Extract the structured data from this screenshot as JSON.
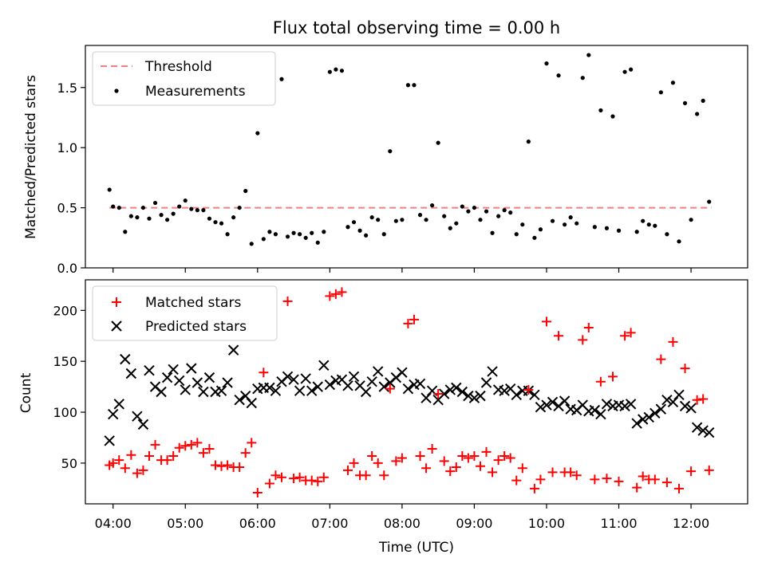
{
  "chart_data": [
    {
      "type": "scatter",
      "title": "Flux total observing time = 0.00 h",
      "xlabel": "",
      "ylabel": "Matched/Predicted stars",
      "ylim": [
        0.0,
        1.85
      ],
      "xlim": [
        "03:37",
        "12:47"
      ],
      "yticks": [
        0.0,
        0.5,
        1.0,
        1.5
      ],
      "ytick_labels": [
        "0.0",
        "0.5",
        "1.0",
        "1.5"
      ],
      "legend_position": "upper-left",
      "threshold": {
        "name": "Threshold",
        "value": 0.5,
        "x_range": [
          "03:57",
          "12:17"
        ],
        "color": "#f08080"
      },
      "series": [
        {
          "name": "Measurements",
          "color": "#000000",
          "marker": "dot",
          "x": [
            "03:57",
            "04:00",
            "04:05",
            "04:10",
            "04:15",
            "04:20",
            "04:25",
            "04:30",
            "04:35",
            "04:40",
            "04:45",
            "04:50",
            "04:55",
            "05:00",
            "05:05",
            "05:10",
            "05:15",
            "05:20",
            "05:25",
            "05:30",
            "05:35",
            "05:40",
            "05:45",
            "05:50",
            "05:55",
            "06:00",
            "06:05",
            "06:10",
            "06:15",
            "06:20",
            "06:25",
            "06:30",
            "06:35",
            "06:40",
            "06:45",
            "06:50",
            "06:55",
            "07:00",
            "07:05",
            "07:10",
            "07:15",
            "07:20",
            "07:25",
            "07:30",
            "07:35",
            "07:40",
            "07:45",
            "07:50",
            "07:55",
            "08:00",
            "08:05",
            "08:10",
            "08:15",
            "08:20",
            "08:25",
            "08:30",
            "08:35",
            "08:40",
            "08:45",
            "08:50",
            "08:55",
            "09:00",
            "09:05",
            "09:10",
            "09:15",
            "09:20",
            "09:25",
            "09:30",
            "09:35",
            "09:40",
            "09:45",
            "09:50",
            "09:55",
            "10:00",
            "10:05",
            "10:10",
            "10:15",
            "10:20",
            "10:25",
            "10:30",
            "10:35",
            "10:40",
            "10:45",
            "10:50",
            "10:55",
            "11:00",
            "11:05",
            "11:10",
            "11:15",
            "11:20",
            "11:25",
            "11:30",
            "11:35",
            "11:40",
            "11:45",
            "11:50",
            "11:55",
            "12:00",
            "12:05",
            "12:10",
            "12:15"
          ],
          "y": [
            0.65,
            0.51,
            0.5,
            0.3,
            0.43,
            0.42,
            0.5,
            0.41,
            0.54,
            0.44,
            0.4,
            0.45,
            0.51,
            0.56,
            0.49,
            0.48,
            0.48,
            0.41,
            0.38,
            0.37,
            0.28,
            0.42,
            0.5,
            0.64,
            0.2,
            1.12,
            0.24,
            0.3,
            0.28,
            1.57,
            0.26,
            0.29,
            0.28,
            0.25,
            0.29,
            0.21,
            0.3,
            1.63,
            1.65,
            1.64,
            0.34,
            0.38,
            0.31,
            0.27,
            0.42,
            0.4,
            0.28,
            0.97,
            0.39,
            0.4,
            1.52,
            1.52,
            0.44,
            0.4,
            0.52,
            1.04,
            0.43,
            0.33,
            0.37,
            0.51,
            0.47,
            0.5,
            0.4,
            0.47,
            0.29,
            0.43,
            0.48,
            0.46,
            0.28,
            0.36,
            1.05,
            0.25,
            0.32,
            1.7,
            0.39,
            1.6,
            0.36,
            0.42,
            0.37,
            1.58,
            1.77,
            0.34,
            1.31,
            0.33,
            1.26,
            0.31,
            1.63,
            1.65,
            0.3,
            0.39,
            0.36,
            0.35,
            1.46,
            0.28,
            1.54,
            0.22,
            1.37,
            0.4,
            1.28,
            1.39,
            0.55
          ]
        }
      ]
    },
    {
      "type": "scatter",
      "title": "",
      "xlabel": "Time (UTC)",
      "ylabel": "Count",
      "ylim": [
        10,
        230
      ],
      "xlim": [
        "03:37",
        "12:47"
      ],
      "xticks": [
        "04:00",
        "05:00",
        "06:00",
        "07:00",
        "08:00",
        "09:00",
        "10:00",
        "11:00",
        "12:00"
      ],
      "xtick_labels": [
        "04:00",
        "05:00",
        "06:00",
        "07:00",
        "08:00",
        "09:00",
        "10:00",
        "11:00",
        "12:00"
      ],
      "yticks": [
        50,
        100,
        150,
        200
      ],
      "ytick_labels": [
        "50",
        "100",
        "150",
        "200"
      ],
      "legend_position": "upper-left",
      "series": [
        {
          "name": "Matched stars",
          "color": "#ff0000",
          "marker": "plus",
          "x": [
            "03:57",
            "04:00",
            "04:05",
            "04:10",
            "04:15",
            "04:20",
            "04:25",
            "04:30",
            "04:35",
            "04:40",
            "04:45",
            "04:50",
            "04:55",
            "05:00",
            "05:05",
            "05:10",
            "05:15",
            "05:20",
            "05:25",
            "05:30",
            "05:35",
            "05:40",
            "05:45",
            "05:50",
            "05:55",
            "06:00",
            "06:05",
            "06:10",
            "06:15",
            "06:20",
            "06:25",
            "06:30",
            "06:35",
            "06:40",
            "06:45",
            "06:50",
            "06:55",
            "07:00",
            "07:05",
            "07:10",
            "07:15",
            "07:20",
            "07:25",
            "07:30",
            "07:35",
            "07:40",
            "07:45",
            "07:50",
            "07:55",
            "08:00",
            "08:05",
            "08:10",
            "08:15",
            "08:20",
            "08:25",
            "08:30",
            "08:35",
            "08:40",
            "08:45",
            "08:50",
            "08:55",
            "09:00",
            "09:05",
            "09:10",
            "09:15",
            "09:20",
            "09:25",
            "09:30",
            "09:35",
            "09:40",
            "09:45",
            "09:50",
            "09:55",
            "10:00",
            "10:05",
            "10:10",
            "10:15",
            "10:20",
            "10:25",
            "10:30",
            "10:35",
            "10:40",
            "10:45",
            "10:50",
            "10:55",
            "11:00",
            "11:05",
            "11:10",
            "11:15",
            "11:20",
            "11:25",
            "11:30",
            "11:35",
            "11:40",
            "11:45",
            "11:50",
            "11:55",
            "12:00",
            "12:05",
            "12:10",
            "12:15"
          ],
          "y": [
            48,
            50,
            53,
            45,
            58,
            40,
            43,
            57,
            68,
            53,
            53,
            57,
            65,
            67,
            68,
            70,
            60,
            64,
            48,
            47,
            48,
            46,
            46,
            60,
            70,
            21,
            139,
            30,
            38,
            36,
            209,
            35,
            36,
            33,
            33,
            32,
            36,
            214,
            216,
            218,
            43,
            50,
            38,
            38,
            57,
            50,
            38,
            123,
            52,
            55,
            187,
            191,
            57,
            45,
            64,
            118,
            52,
            42,
            46,
            57,
            55,
            57,
            47,
            61,
            41,
            53,
            57,
            55,
            33,
            45,
            122,
            25,
            34,
            189,
            41,
            175,
            41,
            41,
            38,
            171,
            183,
            34,
            130,
            35,
            135,
            32,
            175,
            178,
            26,
            37,
            34,
            34,
            152,
            31,
            169,
            25,
            143,
            42,
            112,
            113,
            43
          ]
        },
        {
          "name": "Predicted stars",
          "color": "#000000",
          "marker": "cross",
          "x": [
            "03:57",
            "04:00",
            "04:05",
            "04:10",
            "04:15",
            "04:20",
            "04:25",
            "04:30",
            "04:35",
            "04:40",
            "04:45",
            "04:50",
            "04:55",
            "05:00",
            "05:05",
            "05:10",
            "05:15",
            "05:20",
            "05:25",
            "05:30",
            "05:35",
            "05:40",
            "05:45",
            "05:50",
            "05:55",
            "06:00",
            "06:05",
            "06:10",
            "06:15",
            "06:20",
            "06:25",
            "06:30",
            "06:35",
            "06:40",
            "06:45",
            "06:50",
            "06:55",
            "07:00",
            "07:05",
            "07:10",
            "07:15",
            "07:20",
            "07:25",
            "07:30",
            "07:35",
            "07:40",
            "07:45",
            "07:50",
            "07:55",
            "08:00",
            "08:05",
            "08:10",
            "08:15",
            "08:20",
            "08:25",
            "08:30",
            "08:35",
            "08:40",
            "08:45",
            "08:50",
            "08:55",
            "09:00",
            "09:05",
            "09:10",
            "09:15",
            "09:20",
            "09:25",
            "09:30",
            "09:35",
            "09:40",
            "09:45",
            "09:50",
            "09:55",
            "10:00",
            "10:05",
            "10:10",
            "10:15",
            "10:20",
            "10:25",
            "10:30",
            "10:35",
            "10:40",
            "10:45",
            "10:50",
            "10:55",
            "11:00",
            "11:05",
            "11:10",
            "11:15",
            "11:20",
            "11:25",
            "11:30",
            "11:35",
            "11:40",
            "11:45",
            "11:50",
            "11:55",
            "12:00",
            "12:05",
            "12:10",
            "12:15"
          ],
          "y": [
            72,
            98,
            108,
            152,
            138,
            96,
            88,
            141,
            125,
            120,
            134,
            142,
            131,
            122,
            143,
            129,
            120,
            134,
            120,
            121,
            129,
            161,
            112,
            116,
            109,
            123,
            124,
            124,
            121,
            130,
            135,
            132,
            121,
            133,
            121,
            125,
            146,
            127,
            131,
            132,
            126,
            135,
            126,
            120,
            130,
            140,
            125,
            129,
            134,
            139,
            123,
            127,
            128,
            114,
            121,
            112,
            118,
            122,
            124,
            120,
            116,
            114,
            116,
            129,
            140,
            122,
            121,
            123,
            117,
            121,
            121,
            117,
            105,
            107,
            110,
            106,
            111,
            103,
            102,
            107,
            101,
            102,
            98,
            108,
            106,
            107,
            106,
            108,
            89,
            93,
            95,
            99,
            103,
            112,
            110,
            117,
            106,
            104,
            85,
            82,
            80
          ]
        }
      ]
    }
  ]
}
